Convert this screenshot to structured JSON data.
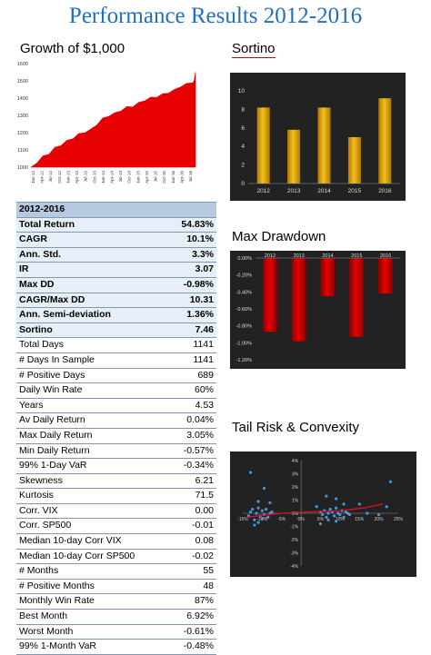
{
  "page_title": "Performance Results 2012-2016",
  "chart_data": [
    {
      "type": "area",
      "title": "Growth of $1,000",
      "ylim": [
        1000,
        1600
      ],
      "y_ticks": [
        "1600",
        "1500",
        "1400",
        "1300",
        "1200",
        "1100",
        "1000"
      ],
      "x_tick_labels": [
        "Jan-12",
        "Apr-12",
        "Jul-12",
        "Oct-12",
        "Jan-13",
        "Apr-13",
        "Jul-13",
        "Oct-13",
        "Jan-14",
        "Apr-14",
        "Jul-14",
        "Oct-14",
        "Jan-15",
        "Apr-15",
        "Jul-15",
        "Oct-15",
        "Jan-16",
        "Apr-16",
        "Jul-16"
      ],
      "x": [
        0,
        2,
        4,
        6,
        8,
        10,
        12,
        14,
        16,
        18,
        20,
        22,
        24,
        26,
        28,
        30,
        32,
        34,
        36,
        38,
        40,
        42,
        44,
        46,
        48,
        50,
        52,
        54,
        54.5,
        55
      ],
      "values": [
        1000,
        1030,
        1060,
        1080,
        1110,
        1130,
        1150,
        1170,
        1190,
        1205,
        1215,
        1250,
        1280,
        1300,
        1310,
        1330,
        1345,
        1355,
        1370,
        1390,
        1400,
        1410,
        1420,
        1435,
        1445,
        1470,
        1480,
        1495,
        1500,
        1550
      ],
      "color": "#e60000"
    },
    {
      "type": "bar",
      "title": "Sortino",
      "categories": [
        "2012",
        "2013",
        "2014",
        "2015",
        "2016"
      ],
      "values": [
        8.2,
        5.8,
        8.2,
        5.0,
        9.2
      ],
      "ylim": [
        0,
        10
      ],
      "y_ticks": [
        "10",
        "8",
        "6",
        "4",
        "2",
        "0"
      ],
      "bar_color": "#f2c01e",
      "background": "#222222"
    },
    {
      "type": "bar",
      "title": "Max Drawdown",
      "categories": [
        "2012",
        "2013",
        "2014",
        "2015",
        "2016"
      ],
      "values": [
        -0.87,
        -0.98,
        -0.45,
        -0.93,
        -0.42
      ],
      "ylim": [
        -1.2,
        0
      ],
      "y_ticks": [
        "0.00%",
        "-0.20%",
        "-0.40%",
        "-0.60%",
        "-0.80%",
        "-1.00%",
        "-1.20%"
      ],
      "bar_color": "#e60000",
      "background": "#222222"
    },
    {
      "type": "scatter",
      "title": "Tail Risk & Convexity",
      "xlim": [
        -15,
        25
      ],
      "ylim": [
        -4,
        4
      ],
      "x_ticks": [
        "-15%",
        "-10%",
        "-5%",
        "0%",
        "5%",
        "10%",
        "15%",
        "20%",
        "25%"
      ],
      "y_ticks": [
        "4%",
        "3%",
        "2%",
        "1%",
        "0%",
        "-1%",
        "-2%",
        "-3%",
        "-4%"
      ],
      "points": [
        [
          -13.5,
          -0.2
        ],
        [
          -13,
          0.1
        ],
        [
          -12.5,
          0.3
        ],
        [
          -12,
          -0.5
        ],
        [
          -11.5,
          0.0
        ],
        [
          -11,
          0.4
        ],
        [
          -10.5,
          -0.2
        ],
        [
          -10,
          0.2
        ],
        [
          -9.5,
          -0.1
        ],
        [
          -9,
          0.3
        ],
        [
          -8.5,
          -0.3
        ],
        [
          -8,
          0.0
        ],
        [
          -12,
          -0.9
        ],
        [
          -11,
          -0.7
        ],
        [
          -10,
          -0.4
        ],
        [
          -7.5,
          0.1
        ],
        [
          -13,
          3.1
        ],
        [
          -9.5,
          1.9
        ],
        [
          -8,
          0.8
        ],
        [
          -11,
          0.9
        ],
        [
          4,
          0.5
        ],
        [
          5,
          0.1
        ],
        [
          5.5,
          -0.1
        ],
        [
          6,
          0.2
        ],
        [
          6.5,
          -0.3
        ],
        [
          7,
          0.0
        ],
        [
          7.5,
          0.3
        ],
        [
          8,
          0.1
        ],
        [
          8.5,
          -0.2
        ],
        [
          9,
          0.4
        ],
        [
          9.5,
          0.0
        ],
        [
          10,
          -0.1
        ],
        [
          10.5,
          0.2
        ],
        [
          11,
          -0.3
        ],
        [
          11.5,
          0.1
        ],
        [
          12,
          0.0
        ],
        [
          12.5,
          -0.1
        ],
        [
          5,
          -0.8
        ],
        [
          7,
          -0.5
        ],
        [
          9,
          -0.6
        ],
        [
          6.5,
          1.3
        ],
        [
          9,
          1.1
        ],
        [
          11,
          0.7
        ],
        [
          15,
          0.7
        ],
        [
          17,
          0.0
        ],
        [
          20,
          -0.1
        ],
        [
          22,
          0.5
        ],
        [
          23,
          2.4
        ]
      ],
      "trend_points": [
        [
          -14,
          -0.3
        ],
        [
          -5,
          0.0
        ],
        [
          2,
          0.1
        ],
        [
          10,
          0.2
        ],
        [
          16,
          0.4
        ],
        [
          21,
          0.7
        ]
      ],
      "point_color": "#4aa3f0",
      "trend_color": "#e0102a",
      "background": "#222222"
    }
  ],
  "stats_table": {
    "header": {
      "label": "2012-2016",
      "value": ""
    },
    "rows": [
      {
        "label": "Total Return",
        "value": "54.83%",
        "bold": true
      },
      {
        "label": "CAGR",
        "value": "10.1%",
        "bold": true
      },
      {
        "label": "Ann. Std.",
        "value": "3.3%",
        "bold": true
      },
      {
        "label": "IR",
        "value": "3.07",
        "bold": true
      },
      {
        "label": "Max DD",
        "value": "-0.98%",
        "bold": true
      },
      {
        "label": "CAGR/Max DD",
        "value": "10.31",
        "bold": true
      },
      {
        "label": "Ann. Semi-deviation",
        "value": "1.36%",
        "bold": true
      },
      {
        "label": "Sortino",
        "value": "7.46",
        "bold": true
      },
      {
        "label": "Total Days",
        "value": "1141",
        "bold": false
      },
      {
        "label": "# Days In Sample",
        "value": "1141",
        "bold": false
      },
      {
        "label": "# Positive Days",
        "value": "689",
        "bold": false
      },
      {
        "label": "Daily Win Rate",
        "value": "60%",
        "bold": false
      },
      {
        "label": "Years",
        "value": "4.53",
        "bold": false
      },
      {
        "label": "Av Daily Return",
        "value": "0.04%",
        "bold": false
      },
      {
        "label": "Max Daily Return",
        "value": "3.05%",
        "bold": false
      },
      {
        "label": "Min Daily Return",
        "value": "-0.57%",
        "bold": false
      },
      {
        "label": "99% 1-Day VaR",
        "value": "-0.34%",
        "bold": false
      },
      {
        "label": "Skewness",
        "value": "6.21",
        "bold": false
      },
      {
        "label": "Kurtosis",
        "value": "71.5",
        "bold": false
      },
      {
        "label": "Corr. VIX",
        "value": "0.00",
        "bold": false
      },
      {
        "label": "Corr. SP500",
        "value": "-0.01",
        "bold": false
      },
      {
        "label": "Median 10-day Corr VIX",
        "value": "0.08",
        "bold": false
      },
      {
        "label": "Median 10-day Corr SP500",
        "value": "-0.02",
        "bold": false
      },
      {
        "label": "# Months",
        "value": "55",
        "bold": false
      },
      {
        "label": "# Positive Months",
        "value": "48",
        "bold": false
      },
      {
        "label": "Monthly Win Rate",
        "value": "87%",
        "bold": false
      },
      {
        "label": "Best Month",
        "value": "6.92%",
        "bold": false
      },
      {
        "label": "Worst Month",
        "value": "-0.61%",
        "bold": false
      },
      {
        "label": "99% 1-Month VaR",
        "value": "-0.48%",
        "bold": false
      }
    ]
  }
}
